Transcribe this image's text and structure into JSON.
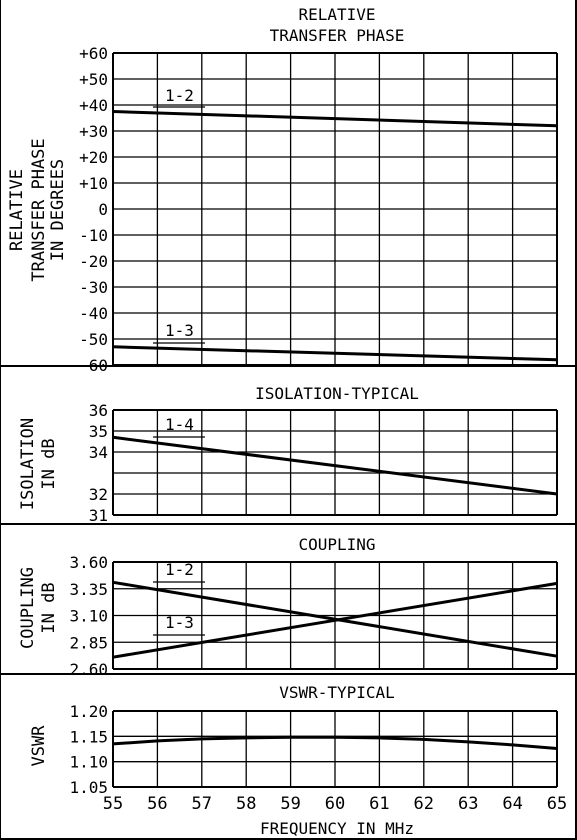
{
  "chart_data": [
    {
      "type": "line",
      "title": "RELATIVE TRANSFER PHASE",
      "title_lines": [
        "RELATIVE",
        "TRANSFER PHASE"
      ],
      "ylabel": "RELATIVE TRANSFER PHASE IN DEGREES",
      "ylabel_lines": [
        "RELATIVE",
        "TRANSFER PHASE",
        "IN DEGREES"
      ],
      "xlim": [
        55,
        65
      ],
      "ylim": [
        -60,
        60
      ],
      "yticks": [
        60,
        50,
        40,
        30,
        20,
        10,
        0,
        -10,
        -20,
        -30,
        -40,
        -50,
        -60
      ],
      "ytick_labels": [
        "+60",
        "+50",
        "+40",
        "+30",
        "+20",
        "+10",
        "0",
        "-10",
        "-20",
        "-30",
        "-40",
        "-50",
        "-60"
      ],
      "grid": true,
      "series": [
        {
          "name": "1-2",
          "x": [
            55,
            65
          ],
          "y": [
            37.5,
            32
          ]
        },
        {
          "name": "1-3",
          "x": [
            55,
            65
          ],
          "y": [
            -53,
            -58
          ]
        }
      ]
    },
    {
      "type": "line",
      "title": "ISOLATION-TYPICAL",
      "ylabel": "ISOLATION IN dB",
      "ylabel_lines": [
        "ISOLATION",
        "IN dB"
      ],
      "xlim": [
        55,
        65
      ],
      "ylim": [
        31,
        36
      ],
      "yticks": [
        36,
        35,
        34,
        33,
        32,
        31
      ],
      "ytick_labels": [
        "36",
        "35",
        "34",
        "",
        "32",
        "31"
      ],
      "grid": true,
      "series": [
        {
          "name": "1-4",
          "x": [
            55,
            65
          ],
          "y": [
            34.7,
            32.0
          ]
        }
      ]
    },
    {
      "type": "line",
      "title": "COUPLING",
      "ylabel": "COUPLING IN dB",
      "ylabel_lines": [
        "COUPLING",
        "IN dB"
      ],
      "xlim": [
        55,
        65
      ],
      "ylim": [
        2.6,
        3.6
      ],
      "yticks": [
        3.6,
        3.35,
        3.1,
        2.85,
        2.6
      ],
      "ytick_labels": [
        "3.60",
        "3.35",
        "3.10",
        "2.85",
        "2.60"
      ],
      "grid": true,
      "series": [
        {
          "name": "1-2",
          "x": [
            55,
            65
          ],
          "y": [
            3.41,
            2.72
          ]
        },
        {
          "name": "1-3",
          "x": [
            55,
            65
          ],
          "y": [
            2.71,
            3.4
          ]
        }
      ]
    },
    {
      "type": "line",
      "title": "VSWR-TYPICAL",
      "ylabel": "VSWR",
      "xlabel": "FREQUENCY IN MHz",
      "xlim": [
        55,
        65
      ],
      "ylim": [
        1.05,
        1.2
      ],
      "yticks": [
        1.2,
        1.15,
        1.1,
        1.05
      ],
      "ytick_labels": [
        "1.20",
        "1.15",
        "1.10",
        "1.05"
      ],
      "xticks": [
        55,
        56,
        57,
        58,
        59,
        60,
        61,
        62,
        63,
        64,
        65
      ],
      "grid": true,
      "series": [
        {
          "x": [
            55,
            56,
            57,
            58,
            59,
            60,
            61,
            62,
            63,
            64,
            65
          ],
          "y": [
            1.135,
            1.141,
            1.145,
            1.147,
            1.148,
            1.148,
            1.147,
            1.144,
            1.139,
            1.133,
            1.126
          ]
        }
      ]
    }
  ]
}
